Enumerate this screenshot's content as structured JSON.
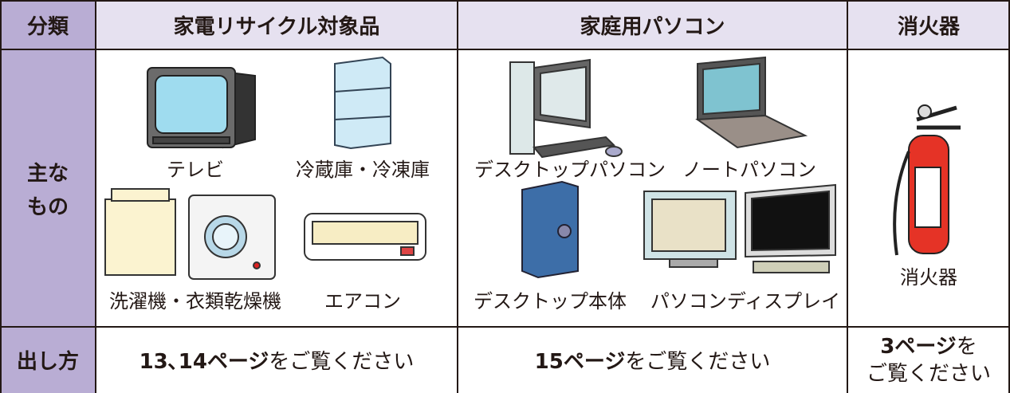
{
  "table": {
    "header": [
      "分類",
      "家電リサイクル対象品",
      "家庭用パソコン",
      "消火器"
    ],
    "main": {
      "label": [
        "主な",
        "もの"
      ],
      "appliances": [
        "テレビ",
        "冷蔵庫・冷凍庫",
        "洗濯機・衣類乾燥機",
        "エアコン"
      ],
      "pcs": [
        "デスクトップパソコン",
        "ノートパソコン",
        "デスクトップ本体",
        "パソコンディスプレイ"
      ],
      "extinguisher": [
        "消火器"
      ]
    },
    "howto": {
      "label": "出し方",
      "cells": [
        {
          "bold": "13､14ページ",
          "text": "をご覧ください"
        },
        {
          "bold": "15ページ",
          "text": "をご覧ください"
        },
        {
          "bold": "3ページ",
          "text": "を",
          "line2": "ご覧ください"
        }
      ]
    }
  }
}
